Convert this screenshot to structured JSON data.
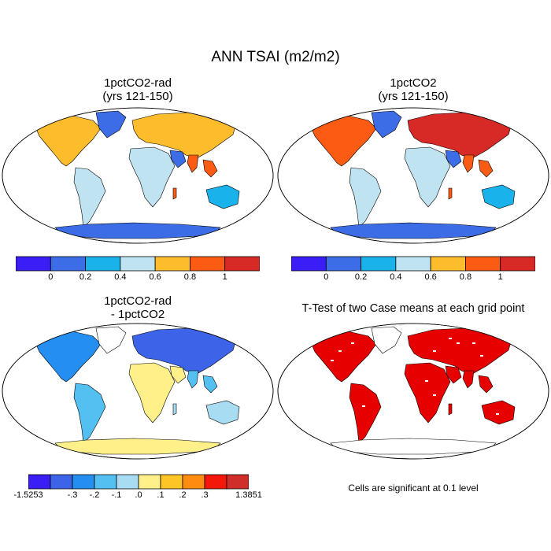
{
  "figure": {
    "title": "ANN TSAI (m2/m2)",
    "colors": {
      "land_outline": "#000000",
      "ocean": "#ffffff",
      "significant": "#e60000"
    }
  },
  "panels": [
    {
      "id": "panel-1",
      "title_line1": "1pctCO2-rad",
      "title_line2": "(yrs 121-150)"
    },
    {
      "id": "panel-2",
      "title_line1": "1pctCO2",
      "title_line2": "(yrs 121-150)"
    },
    {
      "id": "panel-3",
      "title_line1": "1pctCO2-rad",
      "title_line2": "- 1pctCO2"
    },
    {
      "id": "panel-4",
      "title_line1": "T-Test of two Case means at each grid point",
      "note": "Cells are significant at 0.1 level"
    }
  ],
  "colorbars": {
    "absolute": {
      "colors": [
        "#3a1ef5",
        "#3d6de6",
        "#19b2ea",
        "#bfe3f0",
        "#fdbc2c",
        "#fb5b12",
        "#d72a26"
      ],
      "labels": [
        "0",
        "0.2",
        "0.4",
        "0.6",
        "0.8",
        "1"
      ]
    },
    "difference": {
      "colors": [
        "#3a1ef5",
        "#3d64e8",
        "#258ff1",
        "#53c0f1",
        "#a7dcf2",
        "#fff08a",
        "#fdc526",
        "#fd8c10",
        "#f5180a",
        "#d02e2a"
      ],
      "labels": [
        "-1.5253",
        "-.3",
        "-.2",
        "-.1",
        ".0",
        ".1",
        ".2",
        ".3",
        "1.3851"
      ]
    }
  }
}
